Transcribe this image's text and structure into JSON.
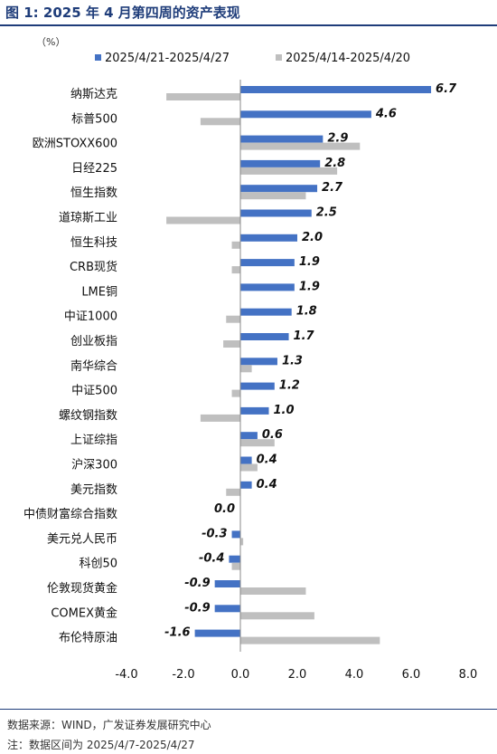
{
  "figure_title": "图 1:  2025 年 4 月第四周的资产表现",
  "notes": {
    "source": "数据来源：WIND，广发证券发展研究中心",
    "range": "注：数据区间为 2025/4/7-2025/4/27"
  },
  "chart_data": {
    "type": "bar",
    "orientation": "horizontal",
    "unit_label": "（%）",
    "categories": [
      "纳斯达克",
      "标普500",
      "欧洲STOXX600",
      "日经225",
      "恒生指数",
      "道琼斯工业",
      "恒生科技",
      "CRB现货",
      "LME铜",
      "中证1000",
      "创业板指",
      "南华综合",
      "中证500",
      "螺纹钢指数",
      "上证综指",
      "沪深300",
      "美元指数",
      "中债财富综合指数",
      "美元兑人民币",
      "科创50",
      "伦敦现货黄金",
      "COMEX黄金",
      "布伦特原油"
    ],
    "series": [
      {
        "name": "2025/4/21-2025/4/27",
        "values": [
          6.7,
          4.6,
          2.9,
          2.8,
          2.7,
          2.5,
          2.0,
          1.9,
          1.9,
          1.8,
          1.7,
          1.3,
          1.2,
          1.0,
          0.6,
          0.4,
          0.4,
          0.0,
          -0.3,
          -0.4,
          -0.9,
          -0.9,
          -1.6
        ],
        "data_labels": [
          "6.7",
          "4.6",
          "2.9",
          "2.8",
          "2.7",
          "2.5",
          "2.0",
          "1.9",
          "1.9",
          "1.8",
          "1.7",
          "1.3",
          "1.2",
          "1.0",
          "0.6",
          "0.4",
          "0.4",
          "0.0",
          "-0.3",
          "-0.4",
          "-0.9",
          "-0.9",
          "-1.6"
        ],
        "color": "#4472c4"
      },
      {
        "name": "2025/4/14-2025/4/20",
        "values": [
          -2.6,
          -1.4,
          4.2,
          3.4,
          2.3,
          -2.6,
          -0.3,
          -0.3,
          0.0,
          -0.5,
          -0.6,
          0.4,
          -0.3,
          -1.4,
          1.2,
          0.6,
          -0.5,
          0.0,
          0.1,
          -0.3,
          2.3,
          2.6,
          4.9
        ],
        "color": "#bfbfbf"
      }
    ],
    "xlim": [
      -4.0,
      8.0
    ],
    "xticks": [
      -4.0,
      -2.0,
      0.0,
      2.0,
      4.0,
      6.0,
      8.0
    ],
    "xtick_labels": [
      "-4.0",
      "-2.0",
      "0.0",
      "2.0",
      "4.0",
      "6.0",
      "8.0"
    ],
    "grid": false,
    "legend_position": "top"
  }
}
